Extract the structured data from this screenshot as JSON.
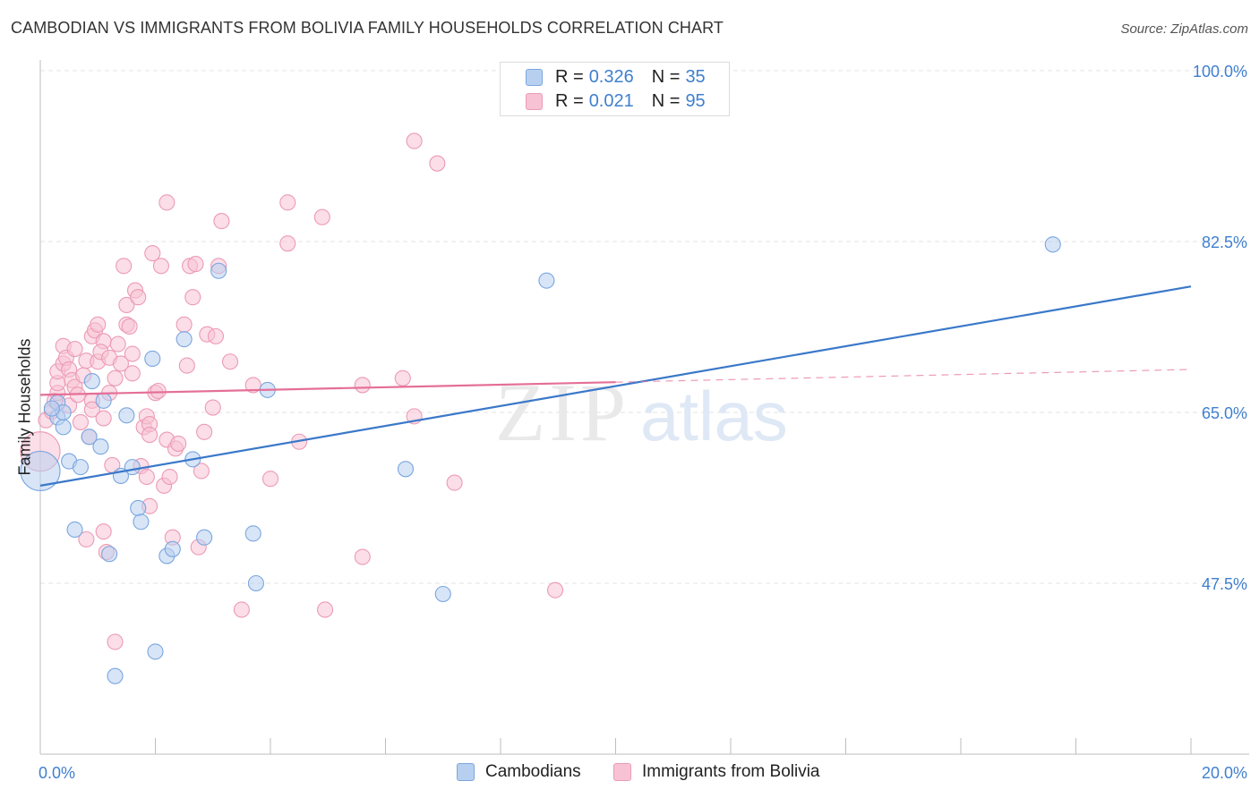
{
  "title": "CAMBODIAN VS IMMIGRANTS FROM BOLIVIA FAMILY HOUSEHOLDS CORRELATION CHART",
  "source": "Source: ZipAtlas.com",
  "watermark": {
    "zip": "ZIP",
    "atlas": "atlas"
  },
  "colors": {
    "blue_fill": "#b8d0f0",
    "blue_stroke": "#7aa6df",
    "blue_line": "#3a78c9",
    "pink_fill": "#f7c3d4",
    "pink_stroke": "#ec9ab6",
    "pink_line": "#e46f98",
    "axis_text": "#3f7fcf",
    "grid": "#e3e3e3"
  },
  "legend": {
    "rows": [
      {
        "r_label": "R =",
        "r_value": "0.326",
        "n_label": "N =",
        "n_value": "35",
        "color": "blue"
      },
      {
        "r_label": "R =",
        "r_value": "0.021",
        "n_label": "N =",
        "n_value": "95",
        "color": "pink"
      }
    ]
  },
  "bottom_legend": [
    {
      "label": "Cambodians",
      "color": "blue"
    },
    {
      "label": "Immigrants from Bolivia",
      "color": "pink"
    }
  ],
  "chart_data": {
    "type": "scatter",
    "title": "CAMBODIAN VS IMMIGRANTS FROM BOLIVIA FAMILY HOUSEHOLDS CORRELATION CHART",
    "xlabel": "",
    "ylabel": "Family Households",
    "xlim": [
      0,
      20
    ],
    "ylim": [
      30,
      100
    ],
    "x_tick_labels": [
      {
        "value": 0,
        "label": "0.0%"
      },
      {
        "value": 20,
        "label": "20.0%"
      }
    ],
    "y_tick_labels": [
      {
        "value": 47.5,
        "label": "47.5%"
      },
      {
        "value": 65.0,
        "label": "65.0%"
      },
      {
        "value": 82.5,
        "label": "82.5%"
      },
      {
        "value": 100.0,
        "label": "100.0%"
      }
    ],
    "series": [
      {
        "name": "Cambodians",
        "color": "blue",
        "r": 0.326,
        "n": 35,
        "trend": {
          "x": [
            0,
            20
          ],
          "y": [
            57.5,
            77.9
          ],
          "dashed_from": null
        },
        "points": [
          [
            0.0,
            59.0
          ],
          [
            0.3,
            64.5
          ],
          [
            0.4,
            63.5
          ],
          [
            0.3,
            66.0
          ],
          [
            0.4,
            65.0
          ],
          [
            0.5,
            60.0
          ],
          [
            0.6,
            53.0
          ],
          [
            0.7,
            59.4
          ],
          [
            0.9,
            68.2
          ],
          [
            0.85,
            62.5
          ],
          [
            1.05,
            61.5
          ],
          [
            1.1,
            66.2
          ],
          [
            1.2,
            50.5
          ],
          [
            1.3,
            38.0
          ],
          [
            1.4,
            58.5
          ],
          [
            1.5,
            64.7
          ],
          [
            1.6,
            59.4
          ],
          [
            1.7,
            55.2
          ],
          [
            1.75,
            53.8
          ],
          [
            1.95,
            70.5
          ],
          [
            2.0,
            40.5
          ],
          [
            2.2,
            50.3
          ],
          [
            2.3,
            51.0
          ],
          [
            2.5,
            72.5
          ],
          [
            2.65,
            60.2
          ],
          [
            2.85,
            52.2
          ],
          [
            3.1,
            79.5
          ],
          [
            3.7,
            52.6
          ],
          [
            3.75,
            47.5
          ],
          [
            3.95,
            67.3
          ],
          [
            6.35,
            59.2
          ],
          [
            7.0,
            46.4
          ],
          [
            8.8,
            78.5
          ],
          [
            17.6,
            82.2
          ],
          [
            0.2,
            65.4
          ]
        ]
      },
      {
        "name": "Immigrants from Bolivia",
        "color": "pink",
        "r": 0.021,
        "n": 95,
        "trend": {
          "x": [
            0,
            20
          ],
          "y": [
            66.8,
            69.4
          ],
          "dashed_from": 10
        },
        "points": [
          [
            0.0,
            61.0
          ],
          [
            0.1,
            64.2
          ],
          [
            0.2,
            65.1
          ],
          [
            0.25,
            66.2
          ],
          [
            0.3,
            67.0
          ],
          [
            0.3,
            68.0
          ],
          [
            0.3,
            69.2
          ],
          [
            0.4,
            70.0
          ],
          [
            0.4,
            71.8
          ],
          [
            0.45,
            70.6
          ],
          [
            0.5,
            69.4
          ],
          [
            0.5,
            65.7
          ],
          [
            0.55,
            68.3
          ],
          [
            0.6,
            67.6
          ],
          [
            0.65,
            66.8
          ],
          [
            0.7,
            64.0
          ],
          [
            0.75,
            68.8
          ],
          [
            0.8,
            70.3
          ],
          [
            0.8,
            52.0
          ],
          [
            0.85,
            62.5
          ],
          [
            0.9,
            66.2
          ],
          [
            0.9,
            72.8
          ],
          [
            0.9,
            65.3
          ],
          [
            0.95,
            73.4
          ],
          [
            1.0,
            74.0
          ],
          [
            1.0,
            70.2
          ],
          [
            1.1,
            72.3
          ],
          [
            1.05,
            71.2
          ],
          [
            1.1,
            52.8
          ],
          [
            1.1,
            64.4
          ],
          [
            1.15,
            50.7
          ],
          [
            1.2,
            67.0
          ],
          [
            1.2,
            70.6
          ],
          [
            1.25,
            59.6
          ],
          [
            1.3,
            41.5
          ],
          [
            1.3,
            68.5
          ],
          [
            1.35,
            72.0
          ],
          [
            1.4,
            70.0
          ],
          [
            1.45,
            80.0
          ],
          [
            1.5,
            74.0
          ],
          [
            1.5,
            76.0
          ],
          [
            1.55,
            73.8
          ],
          [
            1.6,
            71.0
          ],
          [
            1.6,
            69.0
          ],
          [
            1.65,
            77.5
          ],
          [
            1.7,
            76.8
          ],
          [
            1.75,
            59.5
          ],
          [
            1.8,
            63.5
          ],
          [
            1.85,
            64.6
          ],
          [
            1.9,
            63.8
          ],
          [
            1.85,
            58.4
          ],
          [
            1.9,
            62.7
          ],
          [
            1.9,
            55.4
          ],
          [
            1.95,
            81.3
          ],
          [
            2.0,
            67.0
          ],
          [
            2.05,
            67.2
          ],
          [
            2.1,
            80.0
          ],
          [
            2.15,
            57.5
          ],
          [
            2.2,
            62.2
          ],
          [
            2.2,
            86.5
          ],
          [
            2.25,
            58.4
          ],
          [
            2.3,
            52.2
          ],
          [
            2.35,
            61.3
          ],
          [
            2.4,
            61.8
          ],
          [
            2.5,
            74.0
          ],
          [
            2.55,
            69.8
          ],
          [
            2.6,
            80.0
          ],
          [
            2.65,
            76.8
          ],
          [
            2.7,
            80.2
          ],
          [
            2.75,
            51.2
          ],
          [
            2.8,
            59.0
          ],
          [
            2.85,
            63.0
          ],
          [
            2.9,
            73.0
          ],
          [
            3.0,
            65.5
          ],
          [
            3.05,
            72.8
          ],
          [
            3.1,
            80.0
          ],
          [
            3.15,
            84.6
          ],
          [
            3.3,
            70.2
          ],
          [
            3.5,
            44.8
          ],
          [
            3.7,
            67.8
          ],
          [
            4.0,
            58.2
          ],
          [
            4.3,
            86.5
          ],
          [
            4.3,
            82.3
          ],
          [
            4.5,
            62.0
          ],
          [
            4.9,
            85.0
          ],
          [
            4.95,
            44.8
          ],
          [
            5.6,
            67.8
          ],
          [
            5.6,
            50.2
          ],
          [
            6.3,
            68.5
          ],
          [
            6.5,
            64.6
          ],
          [
            6.5,
            92.8
          ],
          [
            6.9,
            90.5
          ],
          [
            7.2,
            57.8
          ],
          [
            8.95,
            46.8
          ],
          [
            0.6,
            71.5
          ]
        ]
      }
    ]
  }
}
